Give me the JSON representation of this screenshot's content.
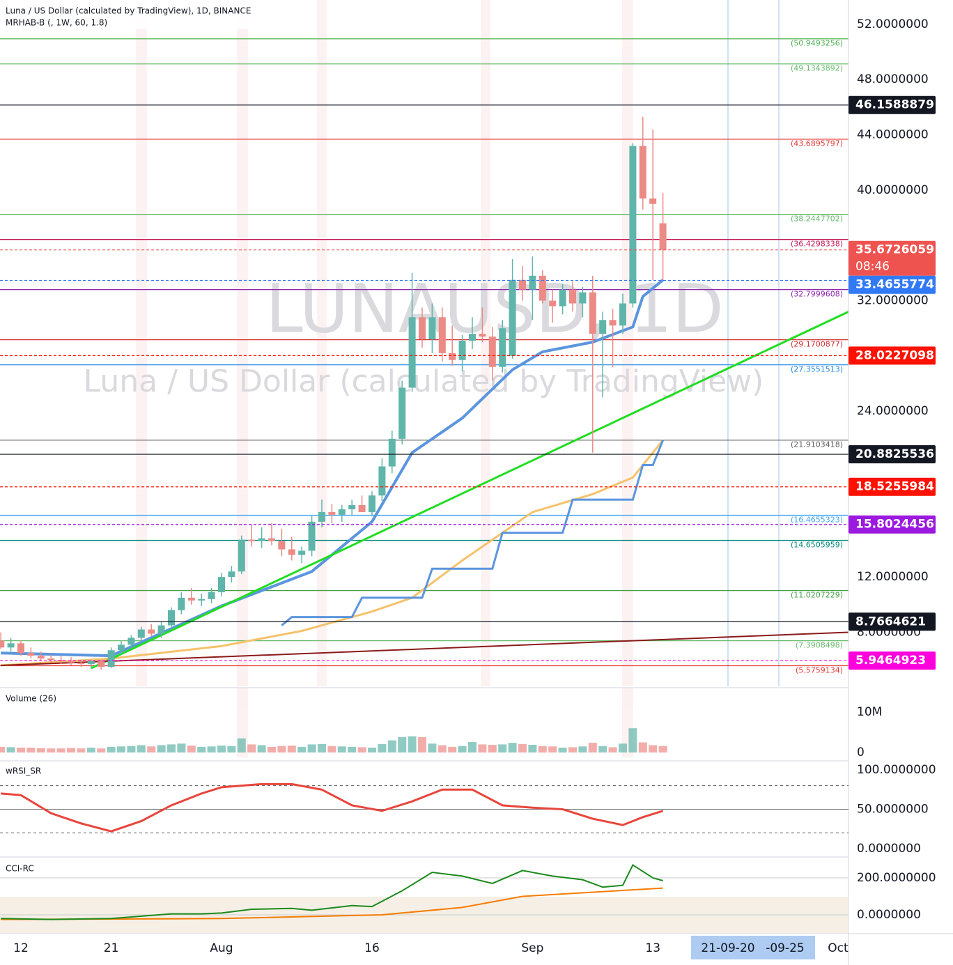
{
  "chart_data": {
    "type": "candlestick",
    "title": "Luna / US Dollar (calculated by TradingView), 1D, BINANCE",
    "subtitle": "MRHAB-B (, 1W, 60, 1.8)",
    "watermark_symbol": "LUNAUSD, 1D",
    "watermark_name": "Luna / US Dollar (calculated by TradingView)",
    "categories": [
      null,
      null,
      "12",
      null,
      null,
      null,
      null,
      null,
      null,
      null,
      null,
      "21",
      null,
      null,
      null,
      null,
      null,
      null,
      null,
      null,
      null,
      null,
      "Aug",
      null,
      null,
      null,
      null,
      null,
      null,
      null,
      null,
      null,
      null,
      null,
      null,
      null,
      null,
      "16",
      null,
      null,
      null,
      null,
      null,
      null,
      null,
      null,
      null,
      null,
      null,
      null,
      null,
      null,
      null,
      "Sep",
      null,
      null,
      null,
      null,
      null,
      null,
      null,
      null,
      null,
      null,
      null,
      "13",
      null
    ],
    "future_category": "Oct",
    "range_start": "21-09-20",
    "range_end": "-09-25",
    "open": [
      7.4,
      6.9,
      7.2,
      6.5,
      6.3,
      6.1,
      6.0,
      5.9,
      5.8,
      5.7,
      5.9,
      5.5,
      6.7,
      7.1,
      7.6,
      8.2,
      7.9,
      8.5,
      9.6,
      10.5,
      10.3,
      10.4,
      10.9,
      12.0,
      12.4,
      14.7,
      14.6,
      14.8,
      14.6,
      14.0,
      13.6,
      13.9,
      16.0,
      16.7,
      16.5,
      16.9,
      17.2,
      16.7,
      17.9,
      20.0,
      22.0,
      25.7,
      30.8,
      29.2,
      30.8,
      28.2,
      27.7,
      29.1,
      29.6,
      29.4,
      27.2,
      28.0,
      33.5,
      32.8,
      33.8,
      32.0,
      31.6,
      32.8,
      31.8,
      32.6,
      29.6,
      30.6,
      30.2,
      31.8,
      43.2,
      39.4,
      37.6
    ],
    "high": [
      8.0,
      7.6,
      7.4,
      6.9,
      6.6,
      6.4,
      6.3,
      6.2,
      6.0,
      6.0,
      6.0,
      6.9,
      7.4,
      7.8,
      8.4,
      8.6,
      8.8,
      9.8,
      10.9,
      11.2,
      10.8,
      11.2,
      12.3,
      12.8,
      15.0,
      15.8,
      15.6,
      15.9,
      15.5,
      14.9,
      14.2,
      16.4,
      17.6,
      17.3,
      17.2,
      17.6,
      17.9,
      18.2,
      20.6,
      22.6,
      26.2,
      34.0,
      31.5,
      31.8,
      31.5,
      30.2,
      29.5,
      30.8,
      31.5,
      30.1,
      30.6,
      35.0,
      34.5,
      35.2,
      34.2,
      32.8,
      33.2,
      33.4,
      33.0,
      33.8,
      31.2,
      31.4,
      32.5,
      43.4,
      45.3,
      44.4,
      39.8
    ],
    "low": [
      6.8,
      6.6,
      6.3,
      6.1,
      5.9,
      5.8,
      5.7,
      5.6,
      5.5,
      5.4,
      5.3,
      5.4,
      6.4,
      6.9,
      7.3,
      7.7,
      7.6,
      8.3,
      9.3,
      10.0,
      9.9,
      10.1,
      10.6,
      11.6,
      12.2,
      14.2,
      14.1,
      14.3,
      13.5,
      13.2,
      13.0,
      13.5,
      15.6,
      15.9,
      16.0,
      16.5,
      16.8,
      16.4,
      17.5,
      19.5,
      21.6,
      25.4,
      28.6,
      28.2,
      27.6,
      27.3,
      26.9,
      28.5,
      29.0,
      26.2,
      26.8,
      27.8,
      32.0,
      30.6,
      31.8,
      30.4,
      31.0,
      31.2,
      30.8,
      21.0,
      25.0,
      27.2,
      29.6,
      31.5,
      38.6,
      33.5,
      33.5
    ],
    "close": [
      6.9,
      7.2,
      6.5,
      6.3,
      6.1,
      6.0,
      5.9,
      5.8,
      5.7,
      5.9,
      5.5,
      6.7,
      7.1,
      7.6,
      8.2,
      7.9,
      8.5,
      9.6,
      10.5,
      10.3,
      10.4,
      10.9,
      12.0,
      12.4,
      14.7,
      14.6,
      14.8,
      14.6,
      14.0,
      13.6,
      13.9,
      16.0,
      16.7,
      16.5,
      16.9,
      17.2,
      16.7,
      17.9,
      20.0,
      22.0,
      25.7,
      30.8,
      29.2,
      30.8,
      28.2,
      27.7,
      29.1,
      29.6,
      29.4,
      27.2,
      30.0,
      33.5,
      32.8,
      33.8,
      32.0,
      31.6,
      32.8,
      31.8,
      32.6,
      29.6,
      30.6,
      30.2,
      31.8,
      43.2,
      39.4,
      39.0,
      35.6726059
    ],
    "up_color": "#5fb5aa",
    "down_color": "#ec8a86",
    "ylim": [
      4.09,
      53.76
    ],
    "yticks": [
      {
        "value": 52,
        "label": "52.0000000"
      },
      {
        "value": 48,
        "label": "48.0000000"
      },
      {
        "value": 44,
        "label": "44.0000000"
      },
      {
        "value": 40,
        "label": "40.0000000"
      },
      {
        "value": 32,
        "label": "32.0000000"
      },
      {
        "value": 24,
        "label": "24.0000000"
      },
      {
        "value": 12,
        "label": "12.0000000"
      },
      {
        "value": 8,
        "label": "8.0000000"
      }
    ],
    "levels": [
      {
        "value": 50.9493256,
        "label": "(50.9493256)",
        "color": "#4caf50"
      },
      {
        "value": 49.1343892,
        "label": "(49.1343892)",
        "color": "#66bb6a"
      },
      {
        "value": 43.6895797,
        "label": "(43.6895797)",
        "color": "#e53935"
      },
      {
        "value": 38.2447702,
        "label": "(38.2447702)",
        "color": "#66bb6a"
      },
      {
        "value": 36.4298338,
        "label": "(36.4298338)",
        "color": "#c2185b"
      },
      {
        "value": 32.7999608,
        "label": "(32.7999608)",
        "color": "#8e24aa"
      },
      {
        "value": 29.1700877,
        "label": "(29.1700877)",
        "color": "#d32f2f"
      },
      {
        "value": 27.3551513,
        "label": "(27.3551513)",
        "color": "#1e88e5"
      },
      {
        "value": 21.9103418,
        "label": "(21.9103418)",
        "color": "#616161"
      },
      {
        "value": 16.4655323,
        "label": "(16.4655323)",
        "color": "#42a5f5"
      },
      {
        "value": 14.6505959,
        "label": "(14.6505959)",
        "color": "#00897b"
      },
      {
        "value": 11.0207229,
        "label": "(11.0207229)",
        "color": "#43a047"
      },
      {
        "value": 7.3908498,
        "label": "(7.3908498)",
        "color": "#66bb6a"
      },
      {
        "value": 5.5759134,
        "label": "(5.5759134)",
        "color": "#e53935"
      }
    ],
    "price_tags": [
      {
        "value": 46.1588879,
        "color": "#131722",
        "dash": false
      },
      {
        "value": 35.6726059,
        "color": "#ef5350",
        "dash": true,
        "countdown": "08:46"
      },
      {
        "value": 33.4655774,
        "color": "#3179f5",
        "dash": true
      },
      {
        "value": 28.0227098,
        "color": "#ff1100",
        "dash": true
      },
      {
        "value": 20.8825536,
        "color": "#131722",
        "dash": false
      },
      {
        "value": 18.5255984,
        "color": "#ff1100",
        "dash": true
      },
      {
        "value": 15.8024456,
        "color": "#9c1ae0",
        "dash": true
      },
      {
        "value": 8.7664621,
        "color": "#131722",
        "dash": false
      },
      {
        "value": 5.9464923,
        "color": "#ff00dd",
        "dash": true
      }
    ],
    "overlays": [
      {
        "color": "#f5c26b",
        "width": 3,
        "x": [
          0,
          11,
          22,
          30,
          37,
          41,
          46,
          53,
          59,
          63,
          66
        ],
        "values": [
          5.6,
          6.1,
          7.0,
          8.1,
          9.5,
          10.5,
          13.2,
          16.7,
          18.0,
          19.2,
          21.9
        ]
      },
      {
        "color": "#5b95de",
        "width": 4,
        "x": [
          0,
          11,
          22,
          31,
          37,
          41,
          46,
          51,
          54,
          59,
          63,
          64,
          66
        ],
        "values": [
          6.5,
          6.3,
          9.9,
          12.4,
          16.0,
          21.0,
          23.5,
          27.0,
          28.3,
          29.0,
          30.1,
          32.3,
          33.5
        ]
      },
      {
        "color": "#5b95de",
        "width": 3,
        "x": [
          28,
          29,
          35,
          36,
          42,
          43,
          49,
          50,
          56,
          57,
          63,
          64,
          65,
          66
        ],
        "values": [
          8.5,
          9.1,
          9.1,
          10.5,
          10.5,
          12.6,
          12.6,
          15.2,
          15.2,
          17.6,
          17.6,
          20.1,
          20.1,
          21.9
        ]
      },
      {
        "color": "#22dd22",
        "width": 3,
        "x": [
          9,
          84.5
        ],
        "values": [
          5.4,
          31.2
        ]
      },
      {
        "color": "#8b1a1a",
        "width": 2,
        "x": [
          0,
          84.5
        ],
        "values": [
          5.6,
          8.0
        ]
      }
    ],
    "volume": {
      "label": "Volume (26)",
      "ylim": [
        0,
        12
      ],
      "yticks": [
        {
          "value": 10,
          "label": "10M"
        },
        0
      ],
      "values": [
        1.4,
        1.3,
        1.2,
        1.2,
        1.1,
        1.0,
        1.0,
        1.1,
        1.0,
        1.2,
        1.0,
        1.4,
        1.5,
        1.6,
        1.8,
        1.5,
        1.8,
        2.0,
        2.2,
        1.7,
        1.4,
        1.5,
        1.7,
        1.6,
        3.5,
        2.0,
        1.8,
        1.4,
        1.6,
        1.7,
        1.4,
        2.0,
        2.1,
        1.6,
        1.5,
        1.4,
        1.3,
        1.2,
        2.1,
        3.0,
        3.8,
        4.0,
        3.8,
        2.2,
        1.8,
        1.4,
        1.6,
        2.6,
        2.0,
        1.9,
        2.0,
        2.4,
        2.1,
        1.9,
        1.6,
        1.5,
        1.2,
        1.3,
        1.5,
        2.4,
        1.6,
        1.3,
        2.2,
        6.0,
        2.5,
        1.8,
        1.6
      ]
    },
    "rsi": {
      "label": "wRSI_SR",
      "color": "#e8453c",
      "ylim": [
        0,
        100
      ],
      "guides": [
        20,
        80
      ],
      "yticks": [
        {
          "value": 100,
          "label": "100.0000000"
        },
        {
          "value": 50,
          "label": "50.0000000"
        },
        {
          "value": 0,
          "label": "0.0000000"
        }
      ],
      "x": [
        0,
        2,
        5,
        8,
        11,
        14,
        17,
        20,
        22,
        26,
        29,
        32,
        35,
        38,
        41,
        44,
        47,
        50,
        53,
        56,
        59,
        62,
        64,
        66
      ],
      "values": [
        70,
        68,
        45,
        32,
        22,
        35,
        55,
        70,
        78,
        82,
        82,
        75,
        55,
        48,
        60,
        75,
        75,
        55,
        52,
        50,
        38,
        30,
        40,
        48
      ]
    },
    "cci": {
      "label": "CCI-RC",
      "color": "#1b8a1b",
      "base_color": "#f57c00",
      "ylim": [
        -100,
        300
      ],
      "yticks": [
        {
          "value": 200,
          "label": "200.0000000"
        },
        {
          "value": 0,
          "label": "0.0000000"
        }
      ],
      "x": [
        0,
        5,
        11,
        17,
        20,
        22,
        25,
        29,
        31,
        35,
        37,
        40,
        43,
        46,
        49,
        52,
        55,
        58,
        60,
        62,
        63,
        65,
        66
      ],
      "values": [
        -20,
        -25,
        -20,
        5,
        5,
        10,
        30,
        35,
        25,
        50,
        45,
        130,
        230,
        210,
        170,
        240,
        210,
        190,
        150,
        160,
        270,
        200,
        185
      ],
      "base_x": [
        0,
        22,
        38,
        46,
        52,
        66
      ],
      "base_values": [
        -25,
        -20,
        0,
        40,
        100,
        145
      ]
    }
  }
}
